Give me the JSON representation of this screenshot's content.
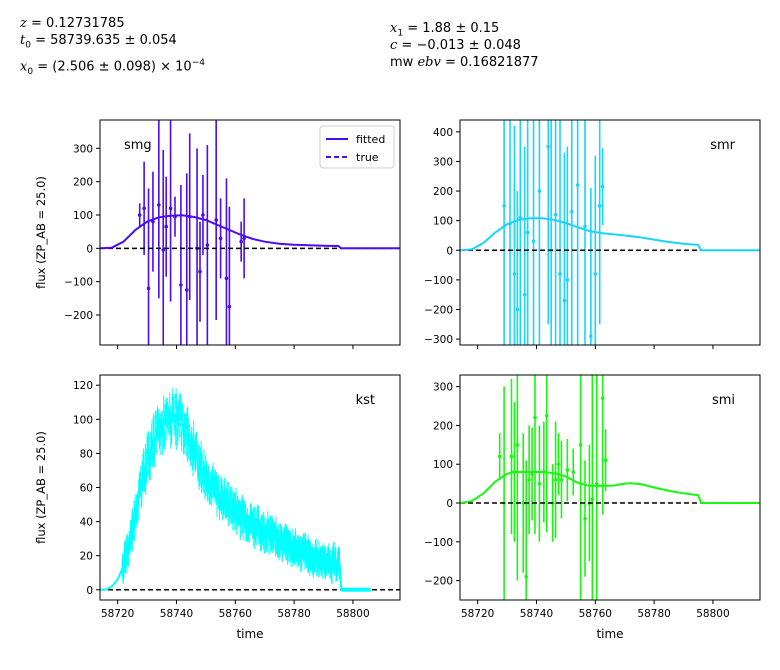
{
  "params": {
    "z_value": "= 0.12731785",
    "t0_value": "= 58739.635 ± 0.054",
    "x0_value": "= (2.506 ± 0.098) × 10",
    "x0_exp": "−4",
    "x1_value": "= 1.88 ± 0.15",
    "c_value": "= −0.013 ± 0.048",
    "mwebv_value": "= 0.16821877"
  },
  "colors": {
    "smg": "#4b0cf0",
    "smr": "#18d4ff",
    "kst": "#00ffff",
    "smi": "#17f80e",
    "truth": "#000000"
  },
  "chart_data": [
    {
      "type": "line",
      "panel": "smg",
      "band_label": "smg",
      "ylabel": "flux (ZP_AB = 25.0)",
      "xlabel": "",
      "xlim": [
        58714,
        58816
      ],
      "ylim": [
        -290,
        385
      ],
      "xticks": [
        58720,
        58740,
        58760,
        58780,
        58800
      ],
      "yticks": [
        -200,
        -100,
        0,
        100,
        200,
        300
      ],
      "show_xticklabels": false,
      "legend": {
        "position": "top-right",
        "entries": [
          "fitted",
          "true"
        ]
      },
      "model": {
        "x": [
          58714,
          58718,
          58722,
          58726,
          58730,
          58734,
          58738,
          58742,
          58746,
          58750,
          58754,
          58758,
          58762,
          58766,
          58770,
          58775,
          58780,
          58785,
          58790,
          58795,
          58796,
          58800,
          58816
        ],
        "y": [
          0,
          2,
          20,
          55,
          80,
          93,
          98,
          99,
          94,
          85,
          70,
          55,
          40,
          28,
          20,
          14,
          11,
          9,
          8,
          7,
          0,
          0,
          0
        ]
      },
      "points": [
        {
          "x": 58727.5,
          "y": 100,
          "err": 35
        },
        {
          "x": 58729,
          "y": 120,
          "err": 140
        },
        {
          "x": 58730.5,
          "y": -120,
          "err": 300
        },
        {
          "x": 58732,
          "y": 80,
          "err": 150
        },
        {
          "x": 58734,
          "y": 130,
          "err": 280
        },
        {
          "x": 58735.5,
          "y": -5,
          "err": 300
        },
        {
          "x": 58736.5,
          "y": 65,
          "err": 150
        },
        {
          "x": 58738,
          "y": 120,
          "err": 280
        },
        {
          "x": 58739.5,
          "y": 95,
          "err": 60
        },
        {
          "x": 58741.5,
          "y": -110,
          "err": 300
        },
        {
          "x": 58743.5,
          "y": -125,
          "err": 350
        },
        {
          "x": 58744.5,
          "y": 95,
          "err": 250
        },
        {
          "x": 58747,
          "y": 0,
          "err": 300
        },
        {
          "x": 58748,
          "y": -70,
          "err": 150
        },
        {
          "x": 58749,
          "y": 100,
          "err": 120
        },
        {
          "x": 58750.5,
          "y": 10,
          "err": 300
        },
        {
          "x": 58753.5,
          "y": 85,
          "err": 300
        },
        {
          "x": 58755,
          "y": 30,
          "err": 120
        },
        {
          "x": 58757,
          "y": -90,
          "err": 300
        },
        {
          "x": 58758,
          "y": -175,
          "err": 300
        },
        {
          "x": 58762,
          "y": 20,
          "err": 60
        },
        {
          "x": 58763,
          "y": 30,
          "err": 120
        }
      ]
    },
    {
      "type": "line",
      "panel": "smr",
      "band_label": "smr",
      "ylabel": "",
      "xlabel": "",
      "xlim": [
        58714,
        58816
      ],
      "ylim": [
        -320,
        440
      ],
      "xticks": [
        58720,
        58740,
        58760,
        58780,
        58800
      ],
      "yticks": [
        -300,
        -200,
        -100,
        0,
        100,
        200,
        300,
        400
      ],
      "show_xticklabels": false,
      "model": {
        "x": [
          58714,
          58718,
          58722,
          58726,
          58730,
          58734,
          58738,
          58742,
          58746,
          58750,
          58754,
          58758,
          58762,
          58766,
          58770,
          58775,
          58780,
          58785,
          58790,
          58795,
          58796,
          58800,
          58816
        ],
        "y": [
          0,
          3,
          25,
          60,
          88,
          103,
          108,
          108,
          103,
          92,
          78,
          65,
          58,
          54,
          50,
          44,
          36,
          28,
          22,
          18,
          0,
          0,
          0
        ]
      },
      "points": [
        {
          "x": 58729,
          "y": 150,
          "err": 500
        },
        {
          "x": 58731,
          "y": 90,
          "err": 500
        },
        {
          "x": 58732.5,
          "y": -80,
          "err": 500
        },
        {
          "x": 58733.5,
          "y": -200,
          "err": 400
        },
        {
          "x": 58734.5,
          "y": 110,
          "err": 500
        },
        {
          "x": 58736,
          "y": -150,
          "err": 500
        },
        {
          "x": 58737,
          "y": 60,
          "err": 450
        },
        {
          "x": 58739,
          "y": 30,
          "err": 600
        },
        {
          "x": 58741,
          "y": 200,
          "err": 600
        },
        {
          "x": 58744,
          "y": 350,
          "err": 600
        },
        {
          "x": 58745,
          "y": 0,
          "err": 600
        },
        {
          "x": 58746.5,
          "y": 120,
          "err": 500
        },
        {
          "x": 58748,
          "y": -80,
          "err": 550
        },
        {
          "x": 58749.5,
          "y": -170,
          "err": 500
        },
        {
          "x": 58750.5,
          "y": -100,
          "err": 450
        },
        {
          "x": 58752,
          "y": 130,
          "err": 500
        },
        {
          "x": 58754,
          "y": 220,
          "err": 600
        },
        {
          "x": 58756.5,
          "y": 80,
          "err": 600
        },
        {
          "x": 58758.5,
          "y": -290,
          "err": 500
        },
        {
          "x": 58760,
          "y": -80,
          "err": 400
        },
        {
          "x": 58761.5,
          "y": 150,
          "err": 400
        },
        {
          "x": 58762.5,
          "y": 215,
          "err": 130
        }
      ]
    },
    {
      "type": "line",
      "panel": "kst",
      "band_label": "kst",
      "ylabel": "flux (ZP_AB = 25.0)",
      "xlabel": "time",
      "xlim": [
        58714,
        58816
      ],
      "ylim": [
        -6,
        126
      ],
      "xticks": [
        58720,
        58740,
        58760,
        58780,
        58800
      ],
      "yticks": [
        0,
        20,
        40,
        60,
        80,
        100,
        120
      ],
      "show_xticklabels": true,
      "model": {
        "x": [
          58714,
          58716,
          58718,
          58720,
          58722,
          58724,
          58726,
          58728,
          58730,
          58732,
          58734,
          58736,
          58738,
          58740,
          58742,
          58744,
          58746,
          58748,
          58750,
          58752,
          58755,
          58758,
          58762,
          58766,
          58770,
          58774,
          58778,
          58782,
          58786,
          58790,
          58794,
          58795.5,
          58796,
          58806
        ],
        "y": [
          0,
          0,
          2,
          6,
          14,
          28,
          45,
          62,
          76,
          86,
          93,
          98,
          100,
          99,
          96,
          90,
          82,
          74,
          67,
          61,
          55,
          50,
          44,
          39,
          34,
          30,
          26,
          23,
          19,
          17,
          15,
          15,
          0,
          0
        ]
      },
      "noise_band": {
        "x_start": 58721.5,
        "x_end": 58795.5,
        "amplitude": 9,
        "error_bar": 7
      }
    },
    {
      "type": "line",
      "panel": "smi",
      "band_label": "smi",
      "ylabel": "",
      "xlabel": "time",
      "xlim": [
        58714,
        58816
      ],
      "ylim": [
        -250,
        330
      ],
      "xticks": [
        58720,
        58740,
        58760,
        58780,
        58800
      ],
      "yticks": [
        -200,
        -100,
        0,
        100,
        200,
        300
      ],
      "show_xticklabels": true,
      "model": {
        "x": [
          58714,
          58718,
          58722,
          58726,
          58730,
          58732,
          58734,
          58738,
          58742,
          58746,
          58750,
          58754,
          58758,
          58762,
          58766,
          58770,
          58772,
          58776,
          58780,
          58786,
          58790,
          58795,
          58796,
          58800,
          58816
        ],
        "y": [
          0,
          5,
          25,
          55,
          75,
          80,
          80,
          80,
          80,
          77,
          68,
          52,
          44,
          44,
          45,
          50,
          51,
          48,
          40,
          30,
          25,
          20,
          0,
          0,
          0
        ]
      },
      "points": [
        {
          "x": 58727.5,
          "y": 120,
          "err": 60
        },
        {
          "x": 58729,
          "y": 0,
          "err": 300
        },
        {
          "x": 58731.5,
          "y": 120,
          "err": 200
        },
        {
          "x": 58732.5,
          "y": 80,
          "err": 180
        },
        {
          "x": 58733.5,
          "y": 150,
          "err": 350
        },
        {
          "x": 58735.5,
          "y": 0,
          "err": 180
        },
        {
          "x": 58736.5,
          "y": -190,
          "err": 300
        },
        {
          "x": 58737.5,
          "y": 60,
          "err": 140
        },
        {
          "x": 58738.5,
          "y": 75,
          "err": 120
        },
        {
          "x": 58739.5,
          "y": 220,
          "err": 300
        },
        {
          "x": 58741,
          "y": 50,
          "err": 150
        },
        {
          "x": 58742.5,
          "y": 80,
          "err": 130
        },
        {
          "x": 58743.5,
          "y": 225,
          "err": 300
        },
        {
          "x": 58745.5,
          "y": 0,
          "err": 100
        },
        {
          "x": 58746.5,
          "y": 60,
          "err": 150
        },
        {
          "x": 58747.5,
          "y": 100,
          "err": 80
        },
        {
          "x": 58748.5,
          "y": 60,
          "err": 100
        },
        {
          "x": 58750.5,
          "y": 85,
          "err": 80
        },
        {
          "x": 58752.5,
          "y": 80,
          "err": 60
        },
        {
          "x": 58755,
          "y": 150,
          "err": 400
        },
        {
          "x": 58756.5,
          "y": -40,
          "err": 150
        },
        {
          "x": 58758,
          "y": 0,
          "err": 150
        },
        {
          "x": 58759,
          "y": 10,
          "err": 400
        },
        {
          "x": 58760.5,
          "y": 50,
          "err": 300
        },
        {
          "x": 58762.5,
          "y": 270,
          "err": 300
        },
        {
          "x": 58763.5,
          "y": 110,
          "err": 80
        }
      ]
    }
  ]
}
